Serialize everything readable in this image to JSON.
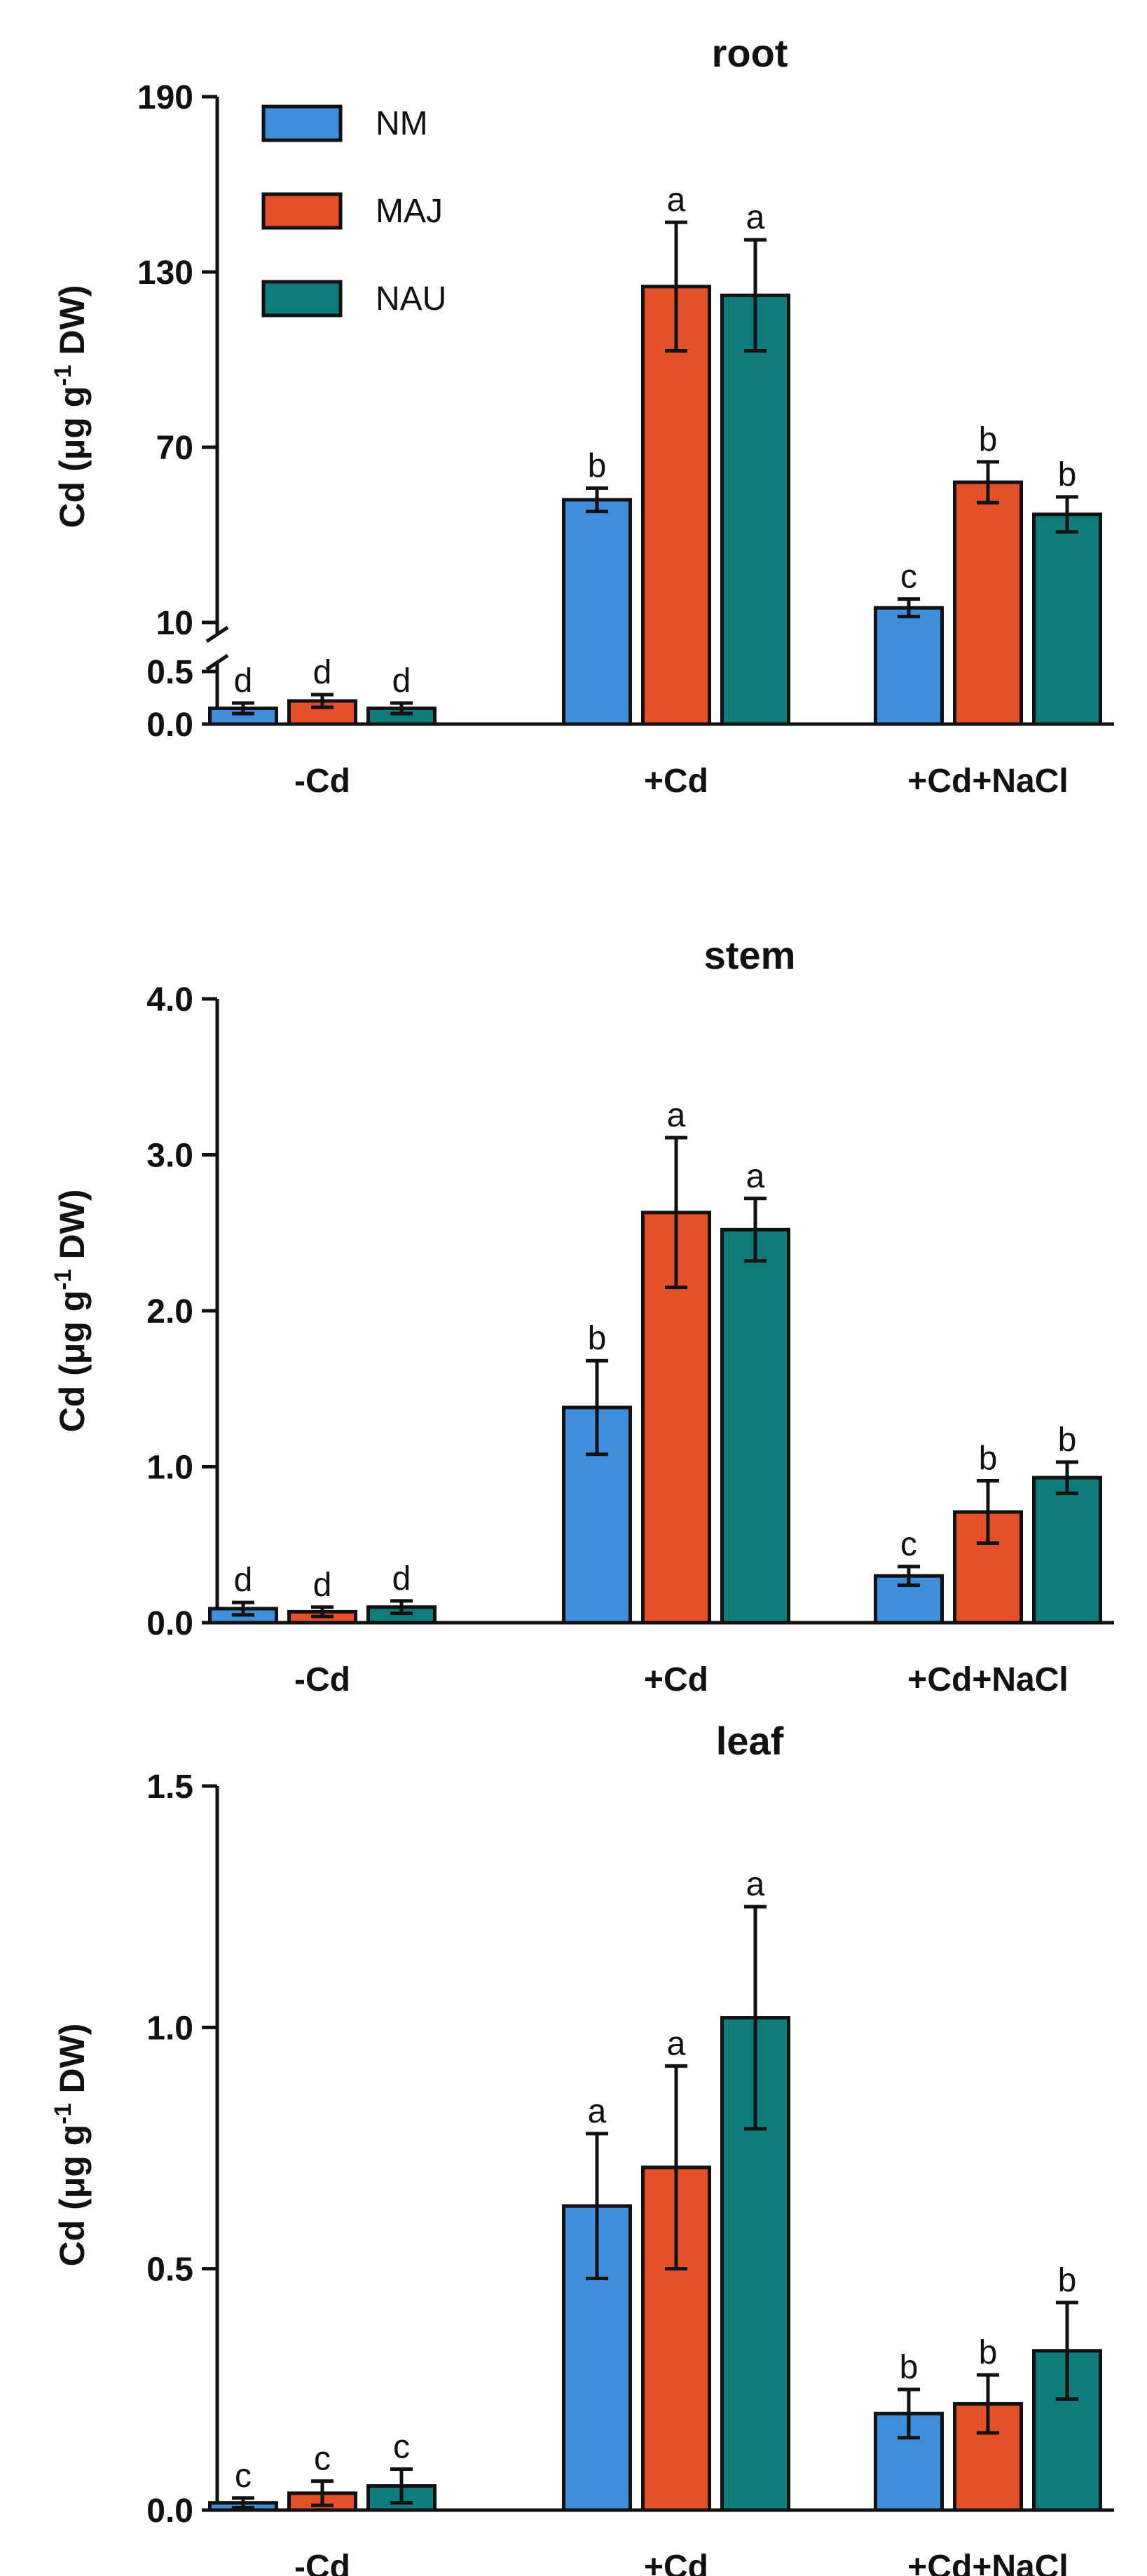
{
  "colors": {
    "NM": "#3f8edc",
    "MAJ": "#e4502a",
    "NAU": "#0e7c7b",
    "axis": "#111111"
  },
  "legend": [
    "NM",
    "MAJ",
    "NAU"
  ],
  "chart_data": [
    {
      "type": "bar",
      "title": "root",
      "ylabel": "Cd (μg g⁻¹ DW)",
      "categories": [
        "-Cd",
        "+Cd",
        "+Cd+NaCl"
      ],
      "broken_axis": true,
      "lower_range": [
        0,
        0.5
      ],
      "upper_range": [
        10,
        190
      ],
      "lower_ticks": [
        "0.0",
        "0.5"
      ],
      "upper_ticks": [
        "10",
        "70",
        "130",
        "190"
      ],
      "series": [
        {
          "name": "NM",
          "values": [
            0.15,
            52,
            15
          ],
          "errors": [
            0.05,
            4,
            3
          ],
          "letters": [
            "d",
            "b",
            "c"
          ]
        },
        {
          "name": "MAJ",
          "values": [
            0.22,
            125,
            58
          ],
          "errors": [
            0.06,
            22,
            7
          ],
          "letters": [
            "d",
            "a",
            "b"
          ]
        },
        {
          "name": "NAU",
          "values": [
            0.15,
            122,
            47
          ],
          "errors": [
            0.05,
            19,
            6
          ],
          "letters": [
            "d",
            "a",
            "b"
          ]
        }
      ]
    },
    {
      "type": "bar",
      "title": "stem",
      "ylabel": "Cd (μg g⁻¹ DW)",
      "categories": [
        "-Cd",
        "+Cd",
        "+Cd+NaCl"
      ],
      "ylim": [
        0,
        4.0
      ],
      "yticks": [
        "0.0",
        "1.0",
        "2.0",
        "3.0",
        "4.0"
      ],
      "series": [
        {
          "name": "NM",
          "values": [
            0.09,
            1.38,
            0.3
          ],
          "errors": [
            0.04,
            0.3,
            0.06
          ],
          "letters": [
            "d",
            "b",
            "c"
          ]
        },
        {
          "name": "MAJ",
          "values": [
            0.07,
            2.63,
            0.71
          ],
          "errors": [
            0.03,
            0.48,
            0.2
          ],
          "letters": [
            "d",
            "a",
            "b"
          ]
        },
        {
          "name": "NAU",
          "values": [
            0.1,
            2.52,
            0.93
          ],
          "errors": [
            0.04,
            0.2,
            0.1
          ],
          "letters": [
            "d",
            "a",
            "b"
          ]
        }
      ]
    },
    {
      "type": "bar",
      "title": "leaf",
      "ylabel": "Cd (μg g⁻¹ DW)",
      "categories": [
        "-Cd",
        "+Cd",
        "+Cd+NaCl"
      ],
      "ylim": [
        0,
        1.5
      ],
      "yticks": [
        "0.0",
        "0.5",
        "1.0",
        "1.5"
      ],
      "series": [
        {
          "name": "NM",
          "values": [
            0.015,
            0.63,
            0.2
          ],
          "errors": [
            0.01,
            0.15,
            0.05
          ],
          "letters": [
            "c",
            "a",
            "b"
          ]
        },
        {
          "name": "MAJ",
          "values": [
            0.035,
            0.71,
            0.22
          ],
          "errors": [
            0.025,
            0.21,
            0.06
          ],
          "letters": [
            "c",
            "a",
            "b"
          ]
        },
        {
          "name": "NAU",
          "values": [
            0.05,
            1.02,
            0.33
          ],
          "errors": [
            0.035,
            0.23,
            0.1
          ],
          "letters": [
            "c",
            "a",
            "b"
          ]
        }
      ]
    }
  ]
}
